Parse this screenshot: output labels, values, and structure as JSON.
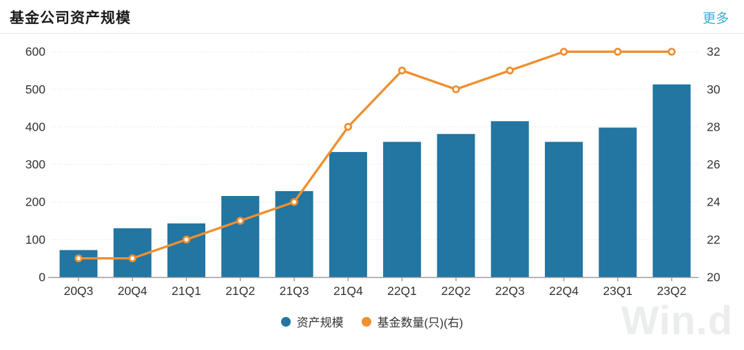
{
  "header": {
    "title": "基金公司资产规模",
    "more_label": "更多"
  },
  "watermark": {
    "text": "Win.d"
  },
  "colors": {
    "bar": "#2375a2",
    "line": "#ef8f2f",
    "marker_fill": "#ffffff",
    "grid": "#e2e2e2",
    "axis": "#999999",
    "tick_label": "#333333",
    "more_link": "#35aed3",
    "title_text": "#1a1a1a",
    "divider": "#e7e7e7",
    "watermark": "#ebedee"
  },
  "legend": {
    "items": [
      {
        "id": "asset-scale",
        "label": "资产规模",
        "color": "#2375a2"
      },
      {
        "id": "fund-count",
        "label": "基金数量(只)(右)",
        "color": "#ef8f2f"
      }
    ]
  },
  "chart_data": {
    "type": "bar+line",
    "title": "基金公司资产规模",
    "categories": [
      "20Q3",
      "20Q4",
      "21Q1",
      "21Q2",
      "21Q3",
      "21Q4",
      "22Q1",
      "22Q2",
      "22Q3",
      "22Q4",
      "23Q1",
      "23Q2"
    ],
    "series": [
      {
        "name": "资产规模",
        "type": "bar",
        "yaxis": "left",
        "values": [
          72,
          130,
          143,
          216,
          229,
          333,
          360,
          381,
          415,
          360,
          398,
          513
        ]
      },
      {
        "name": "基金数量(只)(右)",
        "type": "line",
        "yaxis": "right",
        "values": [
          21,
          21,
          22,
          23,
          24,
          28,
          31,
          30,
          31,
          32,
          32,
          32
        ]
      }
    ],
    "left_axis": {
      "min": 0,
      "max": 600,
      "tick_step": 100,
      "ticks": [
        "0",
        "100",
        "200",
        "300",
        "400",
        "500",
        "600"
      ]
    },
    "right_axis": {
      "min": 20,
      "max": 32,
      "tick_step": 2,
      "ticks": [
        "20",
        "22",
        "24",
        "26",
        "28",
        "30",
        "32"
      ]
    },
    "grid": "horizontal-dotted",
    "legend_position": "bottom-center"
  }
}
